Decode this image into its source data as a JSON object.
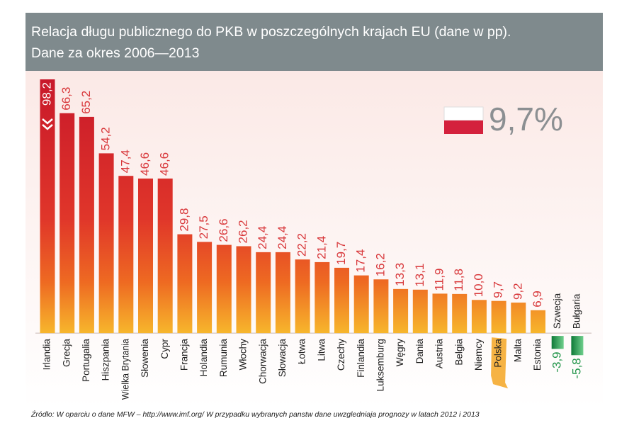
{
  "chart_data": {
    "type": "bar",
    "title": "Relacja długu publicznego do PKB w poszczególnych krajach EU (dane w pp).",
    "subtitle": "Dane za okres 2006—2013",
    "categories": [
      "Irlandia",
      "Grecja",
      "Portugalia",
      "Hiszpania",
      "Wielka Brytania",
      "Słowenia",
      "Cypr",
      "Francja",
      "Holandia",
      "Rumunia",
      "Włochy",
      "Chorwacja",
      "Słowacja",
      "Łotwa",
      "Litwa",
      "Czechy",
      "Finlandia",
      "Luksemburg",
      "Węgry",
      "Dania",
      "Austria",
      "Belgia",
      "Niemcy",
      "Polska",
      "Malta",
      "Estonia",
      "Szwecja",
      "Bułgaria"
    ],
    "values": [
      98.2,
      66.3,
      65.2,
      54.2,
      47.4,
      46.6,
      46.6,
      29.8,
      27.5,
      26.6,
      26.2,
      24.4,
      24.4,
      22.2,
      21.4,
      19.7,
      17.4,
      16.2,
      13.3,
      13.1,
      11.9,
      11.8,
      10.0,
      9.7,
      9.2,
      6.9,
      -3.9,
      -5.8
    ],
    "value_labels": [
      "98,2",
      "66,3",
      "65,2",
      "54,2",
      "47,4",
      "46,6",
      "46,6",
      "29,8",
      "27,5",
      "26,6",
      "26,2",
      "24,4",
      "24,4",
      "22,2",
      "21,4",
      "19,7",
      "17,4",
      "16,2",
      "13,3",
      "13,1",
      "11,9",
      "11,8",
      "10,0",
      "9,7",
      "9,2",
      "6,9",
      "-3,9",
      "-5,8"
    ],
    "color": "#d0202e",
    "negative_color": "#1f9448",
    "highlight_index": 23,
    "highlight_color": "#f5a623",
    "ylim": [
      -16,
      76.5
    ],
    "annotation": "9,7%",
    "source": "Źródło: W oparciu o dane MFW – http://www.imf.org/ W przypadku wybranych panstw dane uwzgledniaja prognozy w latach 2012 i 2013"
  }
}
